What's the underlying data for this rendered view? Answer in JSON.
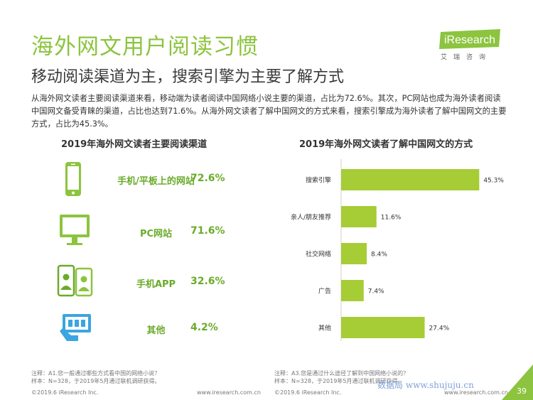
{
  "header": {
    "title": "海外网文用户阅读习惯",
    "subtitle": "移动阅读渠道为主，搜索引擎为主要了解方式"
  },
  "logo": {
    "brand": "iResearch",
    "sub": "艾瑞咨询"
  },
  "intro": "从海外网文读者主要阅读渠道来看，移动端为读者阅读中国网络小说主要的渠道，占比为72.6%。其次，PC网站也成为海外读者阅读中国网文备受青睐的渠道，占比也达到71.6%。从海外网文读者了解中国网文的方式来看，搜索引擎成为海外读者了解中国网文的主要方式，占比为45.3%。",
  "left_panel": {
    "title": "2019年海外网文读者主要阅读渠道",
    "items": [
      {
        "label": "手机/平板上的网站",
        "value": "72.6%",
        "icon": "smartphone-icon"
      },
      {
        "label": "PC网站",
        "value": "71.6%",
        "icon": "desktop-monitor-icon"
      },
      {
        "label": "手机APP",
        "value": "32.6%",
        "icon": "mobile-app-users-icon"
      },
      {
        "label": "其他",
        "value": "4.2%",
        "icon": "tablet-touch-icon"
      }
    ]
  },
  "chart_data": {
    "type": "bar",
    "orientation": "horizontal",
    "title": "2019年海外网文读者了解中国网文的方式",
    "categories": [
      "搜索引擎",
      "亲人/朋友推荐",
      "社交网络",
      "广告",
      "其他"
    ],
    "values": [
      45.3,
      11.6,
      8.4,
      7.4,
      27.4
    ],
    "value_labels": [
      "45.3%",
      "11.6%",
      "8.4%",
      "7.4%",
      "27.4%"
    ],
    "xlim": [
      0,
      50
    ],
    "grid": false,
    "legend": "none",
    "bar_color": "#a6cc36"
  },
  "notes": {
    "left": [
      "注释：A1.您一般通过哪些方式看中国的网络小说？",
      "样本：N=328，于2019年5月通过联机调研获得。"
    ],
    "right": [
      "注释：A3.您是通过什么途径了解到中国网络小说的？",
      "样本：N=328，于2019年5月通过联机调研获得。"
    ]
  },
  "footer": {
    "copyright": "©2019.6 iResearch Inc.",
    "url": "www.iresearch.com.cn",
    "watermark": "数据局 www.shujuju.cn",
    "page": "39"
  },
  "colors": {
    "accent": "#8cc43f",
    "label_green": "#6aab2a",
    "bar": "#a6cc36"
  }
}
